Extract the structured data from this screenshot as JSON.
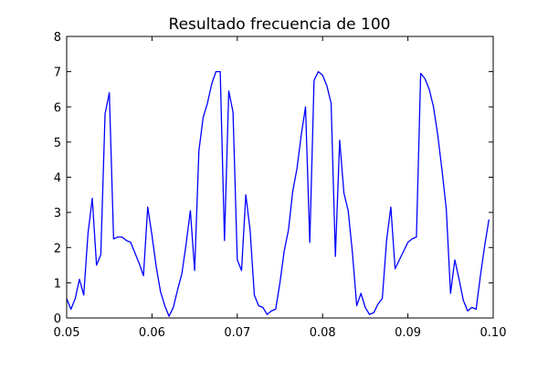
{
  "chart_data": {
    "type": "line",
    "title": "Resultado frecuencia de 100",
    "xlabel": "",
    "ylabel": "",
    "xlim": [
      0.05,
      0.1
    ],
    "ylim": [
      0,
      8
    ],
    "grid": false,
    "line_color": "#0000ff",
    "xtick_labels": [
      "0.05",
      "0.06",
      "0.07",
      "0.08",
      "0.09",
      "0.10"
    ],
    "ytick_labels": [
      "0",
      "1",
      "2",
      "3",
      "4",
      "5",
      "6",
      "7",
      "8"
    ],
    "series": [
      {
        "x": [
          0.05,
          0.0505,
          0.051,
          0.0515,
          0.052,
          0.0525,
          0.053,
          0.0535,
          0.054,
          0.0545,
          0.055,
          0.0555,
          0.056,
          0.0565,
          0.057,
          0.0575,
          0.058,
          0.0585,
          0.059,
          0.0595,
          0.06,
          0.0605,
          0.061,
          0.0615,
          0.062,
          0.0625,
          0.063,
          0.0635,
          0.064,
          0.0645,
          0.065,
          0.0655,
          0.066,
          0.0665,
          0.067,
          0.0675,
          0.068,
          0.0685,
          0.069,
          0.0695,
          0.07,
          0.0705,
          0.071,
          0.0715,
          0.072,
          0.0725,
          0.073,
          0.0735,
          0.074,
          0.0745,
          0.075,
          0.0755,
          0.076,
          0.0765,
          0.077,
          0.0775,
          0.078,
          0.0785,
          0.079,
          0.0795,
          0.08,
          0.0805,
          0.081,
          0.0815,
          0.082,
          0.0825,
          0.083,
          0.0835,
          0.084,
          0.0845,
          0.085,
          0.0855,
          0.086,
          0.0865,
          0.087,
          0.0875,
          0.088,
          0.0885,
          0.089,
          0.0895,
          0.09,
          0.0905,
          0.091,
          0.0915,
          0.092,
          0.0925,
          0.093,
          0.0935,
          0.094,
          0.0945,
          0.095,
          0.0955,
          0.096,
          0.0965,
          0.097,
          0.0975,
          0.098,
          0.0985,
          0.099,
          0.0995
        ],
        "y": [
          0.55,
          0.25,
          0.55,
          1.1,
          0.65,
          2.4,
          3.4,
          1.5,
          1.8,
          5.8,
          6.4,
          2.25,
          2.3,
          2.3,
          2.2,
          2.15,
          1.85,
          1.55,
          1.2,
          3.15,
          2.35,
          1.45,
          0.75,
          0.35,
          0.05,
          0.3,
          0.8,
          1.25,
          2.1,
          3.05,
          1.35,
          4.75,
          5.7,
          6.1,
          6.65,
          7.0,
          7.0,
          2.2,
          6.45,
          5.85,
          1.65,
          1.35,
          3.5,
          2.5,
          0.65,
          0.35,
          0.3,
          0.1,
          0.2,
          0.25,
          1.0,
          1.9,
          2.5,
          3.6,
          4.25,
          5.2,
          6.0,
          2.15,
          6.75,
          7.0,
          6.9,
          6.6,
          6.1,
          1.75,
          5.05,
          3.55,
          3.05,
          1.85,
          0.35,
          0.7,
          0.3,
          0.1,
          0.15,
          0.4,
          0.55,
          2.2,
          3.15,
          1.4,
          1.65,
          1.9,
          2.15,
          2.25,
          2.3,
          6.95,
          6.8,
          6.5,
          6.0,
          5.2,
          4.2,
          3.1,
          0.7,
          1.65,
          1.1,
          0.5,
          0.2,
          0.3,
          0.25,
          1.2,
          2.05,
          2.8
        ]
      }
    ]
  }
}
